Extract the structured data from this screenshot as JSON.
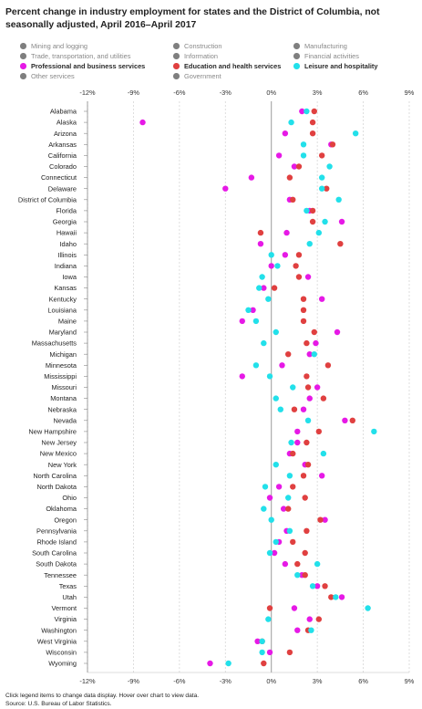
{
  "chart_title": "Percent change in industry employment for states and the District of Columbia, not seasonally adjusted, April 2016–April 2017",
  "legend": [
    {
      "label": "Mining and logging",
      "active": false,
      "color": "#7f7f7f"
    },
    {
      "label": "Construction",
      "active": false,
      "color": "#7f7f7f"
    },
    {
      "label": "Manufacturing",
      "active": false,
      "color": "#7f7f7f"
    },
    {
      "label": "Trade, transportation, and utilities",
      "active": false,
      "color": "#7f7f7f"
    },
    {
      "label": "Information",
      "active": false,
      "color": "#7f7f7f"
    },
    {
      "label": "Financial activities",
      "active": false,
      "color": "#7f7f7f"
    },
    {
      "label": "Professional and business services",
      "active": true,
      "color": "#e619e6"
    },
    {
      "label": "Education and health services",
      "active": true,
      "color": "#e04040"
    },
    {
      "label": "Leisure and hospitality",
      "active": true,
      "color": "#22e0ea"
    },
    {
      "label": "Other services",
      "active": false,
      "color": "#7f7f7f"
    },
    {
      "label": "Government",
      "active": false,
      "color": "#7f7f7f"
    }
  ],
  "footnote_lines": [
    "Click legend items to change data display. Hover over chart to view data.",
    "Source: U.S. Bureau of Labor Statistics."
  ],
  "chart_data": {
    "type": "scatter",
    "title": "Percent change in industry employment for states and the District of Columbia, not seasonally adjusted, April 2016–April 2017",
    "xlim": [
      -12,
      9
    ],
    "x_ticks": [
      "-12%",
      "-9%",
      "-6%",
      "-3%",
      "0%",
      "3%",
      "6%",
      "9%"
    ],
    "x_tick_values": [
      -12,
      -9,
      -6,
      -3,
      0,
      3,
      6,
      9
    ],
    "grid": true,
    "categories": [
      "Alabama",
      "Alaska",
      "Arizona",
      "Arkansas",
      "California",
      "Colorado",
      "Connecticut",
      "Delaware",
      "District of Columbia",
      "Florida",
      "Georgia",
      "Hawaii",
      "Idaho",
      "Illinois",
      "Indiana",
      "Iowa",
      "Kansas",
      "Kentucky",
      "Louisiana",
      "Maine",
      "Maryland",
      "Massachusetts",
      "Michigan",
      "Minnesota",
      "Mississippi",
      "Missouri",
      "Montana",
      "Nebraska",
      "Nevada",
      "New Hampshire",
      "New Jersey",
      "New Mexico",
      "New York",
      "North Carolina",
      "North Dakota",
      "Ohio",
      "Oklahoma",
      "Oregon",
      "Pennsylvania",
      "Rhode Island",
      "South Carolina",
      "South Dakota",
      "Tennessee",
      "Texas",
      "Utah",
      "Vermont",
      "Virginia",
      "Washington",
      "West Virginia",
      "Wisconsin",
      "Wyoming"
    ],
    "series": [
      {
        "name": "Professional and business services",
        "color": "#e619e6",
        "values": [
          2.0,
          -8.4,
          0.9,
          3.9,
          0.5,
          1.5,
          -1.3,
          -3.0,
          1.2,
          2.5,
          4.6,
          1.0,
          -0.7,
          0.9,
          0.0,
          2.4,
          -0.5,
          3.3,
          -1.2,
          -1.9,
          4.3,
          2.9,
          2.5,
          0.7,
          -1.9,
          3.0,
          2.5,
          2.1,
          4.8,
          1.7,
          1.7,
          1.2,
          2.2,
          3.3,
          0.5,
          -0.1,
          0.8,
          3.5,
          1.0,
          0.5,
          0.2,
          0.9,
          2.0,
          3.0,
          4.6,
          1.5,
          2.5,
          1.7,
          -0.9,
          -0.1,
          -4.0
        ]
      },
      {
        "name": "Education and health services",
        "color": "#e04040",
        "values": [
          2.8,
          2.7,
          2.7,
          4.0,
          3.3,
          1.8,
          1.2,
          3.6,
          1.4,
          2.7,
          2.7,
          -0.7,
          4.5,
          1.8,
          1.6,
          1.8,
          0.2,
          2.1,
          2.1,
          2.1,
          2.8,
          2.3,
          1.1,
          3.7,
          2.3,
          2.4,
          3.4,
          1.5,
          5.3,
          3.1,
          2.3,
          1.4,
          2.4,
          2.1,
          1.4,
          2.2,
          1.1,
          3.2,
          2.3,
          1.4,
          2.2,
          1.7,
          2.2,
          3.5,
          3.9,
          -0.1,
          3.1,
          2.4,
          -0.6,
          1.2,
          -0.5
        ]
      },
      {
        "name": "Leisure and hospitality",
        "color": "#22e0ea",
        "values": [
          2.3,
          1.3,
          5.5,
          2.1,
          2.1,
          3.8,
          3.3,
          3.3,
          4.4,
          2.3,
          3.5,
          3.1,
          2.5,
          0.0,
          0.4,
          -0.6,
          -0.8,
          -0.2,
          -1.5,
          -1.0,
          0.3,
          -0.5,
          2.8,
          -1.0,
          -0.1,
          1.4,
          0.3,
          0.6,
          2.4,
          6.7,
          1.3,
          3.4,
          0.3,
          1.2,
          -0.4,
          1.1,
          -0.5,
          0.0,
          1.2,
          0.3,
          -0.1,
          3.0,
          1.7,
          2.7,
          4.2,
          6.3,
          -0.2,
          2.6,
          -0.6,
          -0.6,
          -2.8
        ]
      }
    ]
  }
}
